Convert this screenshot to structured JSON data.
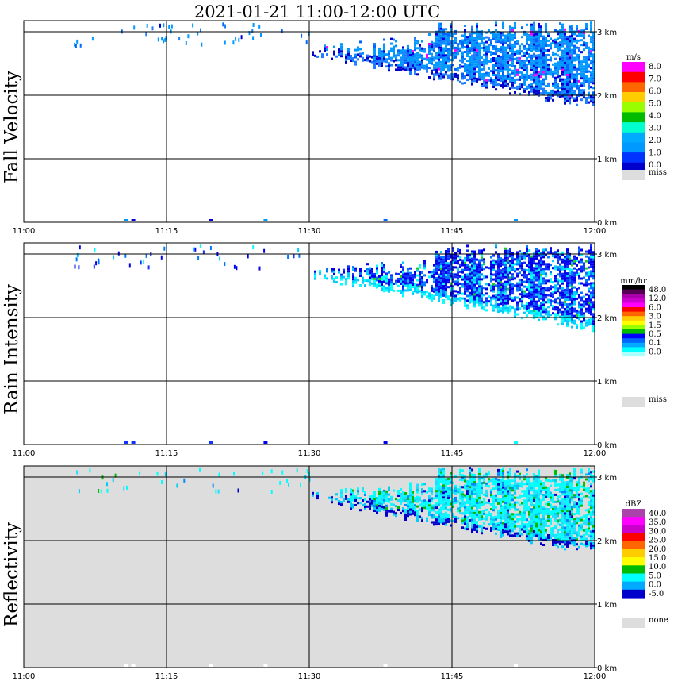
{
  "title": "2021-01-21   11:00-12:00 UTC",
  "x_tick_labels": [
    "11:00",
    "11:15",
    "11:30",
    "11:45",
    "12:00"
  ],
  "y_tick_labels": [
    "0 km",
    "1 km",
    "2 km",
    "3 km"
  ],
  "chart_data": [
    {
      "type": "heatmap",
      "ylabel": "Fall Velocity",
      "xlim": [
        "11:00",
        "12:00"
      ],
      "ylim_km": [
        0,
        3.2
      ],
      "gridlines_km": [
        1,
        2,
        3
      ],
      "background": "#ffffff",
      "colorbar": {
        "unit": "m/s",
        "labels": [
          "8.0",
          "7.0",
          "6.0",
          "5.0",
          "4.0",
          "3.0",
          "2.0",
          "1.0",
          "0.0"
        ],
        "colors": [
          "#ff00ff",
          "#ff0000",
          "#ff6600",
          "#ffcc00",
          "#99ff00",
          "#00bb00",
          "#00ffcc",
          "#00aaff",
          "#0099ff",
          "#0033ff",
          "#0000cc"
        ],
        "missing_label": "miss",
        "missing_color": "#dddddd"
      },
      "echo": {
        "colors": [
          "#0099ff",
          "#0066ff",
          "#1f7dff",
          "#0000dd",
          "#ff00ff"
        ],
        "weights": [
          0.58,
          0.22,
          0.1,
          0.08,
          0.02
        ],
        "edge_colors": [
          "#1f7dff",
          "#0000cc"
        ]
      }
    },
    {
      "type": "heatmap",
      "ylabel": "Rain Intensity",
      "xlim": [
        "11:00",
        "12:00"
      ],
      "ylim_km": [
        0,
        3.2
      ],
      "gridlines_km": [
        1,
        2,
        3
      ],
      "background": "#ffffff",
      "colorbar": {
        "unit": "mm/hr",
        "labels": [
          "48.0",
          "12.0",
          "6.0",
          "3.0",
          "1.5",
          "0.5",
          "0.1",
          "0.0"
        ],
        "colors": [
          "#000000",
          "#550055",
          "#aa00aa",
          "#cc00cc",
          "#ff00ff",
          "#ff0000",
          "#ff6600",
          "#ffcc00",
          "#ffff00",
          "#99ff00",
          "#00bb00",
          "#0000ff",
          "#0066ff",
          "#00aaff",
          "#00ffff",
          "#aaffff"
        ],
        "missing_label": "miss",
        "missing_color": "#dddddd"
      },
      "echo": {
        "colors": [
          "#0000ee",
          "#1133ff",
          "#0077ff",
          "#00ccff",
          "#00ffff",
          "#22cc22"
        ],
        "weights": [
          0.4,
          0.22,
          0.15,
          0.12,
          0.08,
          0.03
        ],
        "edge_colors": [
          "#00ffff",
          "#00ccff"
        ]
      }
    },
    {
      "type": "heatmap",
      "ylabel": "Reflectivity",
      "xlim": [
        "11:00",
        "12:00"
      ],
      "ylim_km": [
        0,
        3.2
      ],
      "gridlines_km": [
        1,
        2,
        3
      ],
      "background": "#dddddd",
      "colorbar": {
        "unit": "dBZ",
        "labels": [
          "40.0",
          "35.0",
          "30.0",
          "25.0",
          "20.0",
          "15.0",
          "10.0",
          "5.0",
          "0.0",
          "-5.0"
        ],
        "colors": [
          "#aa44aa",
          "#ff00ff",
          "#cc00cc",
          "#ff0000",
          "#ff6600",
          "#ffcc00",
          "#ffff00",
          "#00bb00",
          "#00ffff",
          "#00aaff",
          "#0000cc"
        ],
        "missing_label": "none",
        "missing_color": "#dddddd"
      },
      "echo": {
        "colors": [
          "#00ffff",
          "#22ddff",
          "#00ccee",
          "#00bb00",
          "#0088ff",
          "#0000cc"
        ],
        "weights": [
          0.52,
          0.18,
          0.12,
          0.1,
          0.05,
          0.03
        ],
        "edge_colors": [
          "#00ccff",
          "#0000cc"
        ]
      }
    }
  ]
}
